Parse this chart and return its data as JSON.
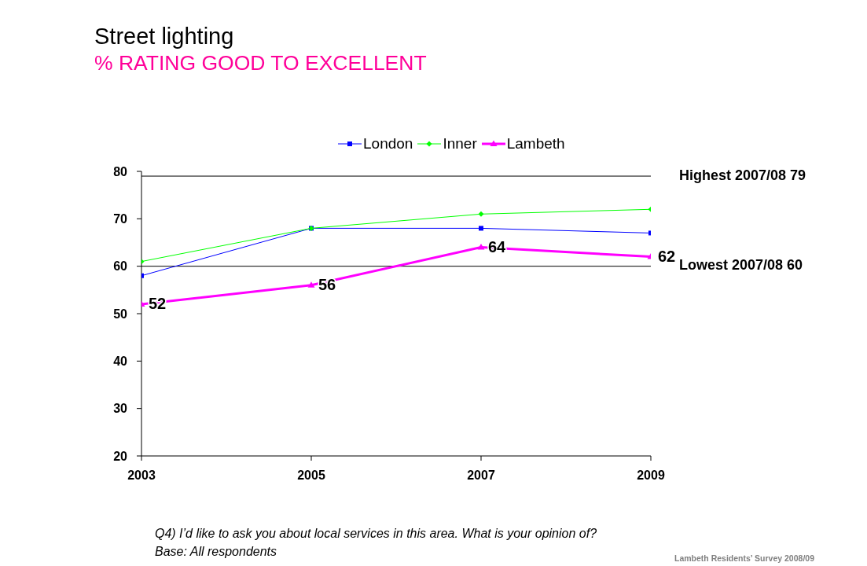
{
  "chart_data": {
    "type": "line",
    "title": "Street lighting",
    "subtitle": "% RATING GOOD TO EXCELLENT",
    "categories": [
      "2003",
      "2005",
      "2007",
      "2009"
    ],
    "series": [
      {
        "name": "London",
        "color": "#0000ff",
        "marker": "square",
        "values": [
          58,
          68,
          68,
          67
        ]
      },
      {
        "name": "Inner",
        "color": "#00ff00",
        "marker": "diamond",
        "values": [
          61,
          68,
          71,
          72
        ]
      },
      {
        "name": "Lambeth",
        "color": "#ff00ff",
        "marker": "triangle",
        "values": [
          52,
          56,
          64,
          62
        ],
        "value_labels": [
          "52",
          "56",
          "64",
          "62"
        ]
      }
    ],
    "ylim": [
      20,
      80
    ],
    "yticks": [
      20,
      30,
      40,
      50,
      60,
      70,
      80
    ],
    "grid": false,
    "legend": "top",
    "line_style": "solid",
    "ref_lines": [
      {
        "axis": "y",
        "value": 79,
        "label": "Highest 2007/08 79",
        "color": "#000000"
      },
      {
        "axis": "y",
        "value": 60,
        "label": "Lowest 2007/08 60",
        "color": "#000000"
      }
    ],
    "annotations": [
      "Q4) I’d like to ask you about local services in this area. What is your opinion of?",
      "Base: All respondents",
      "Lambeth Residents’ Survey 2008/09"
    ]
  }
}
